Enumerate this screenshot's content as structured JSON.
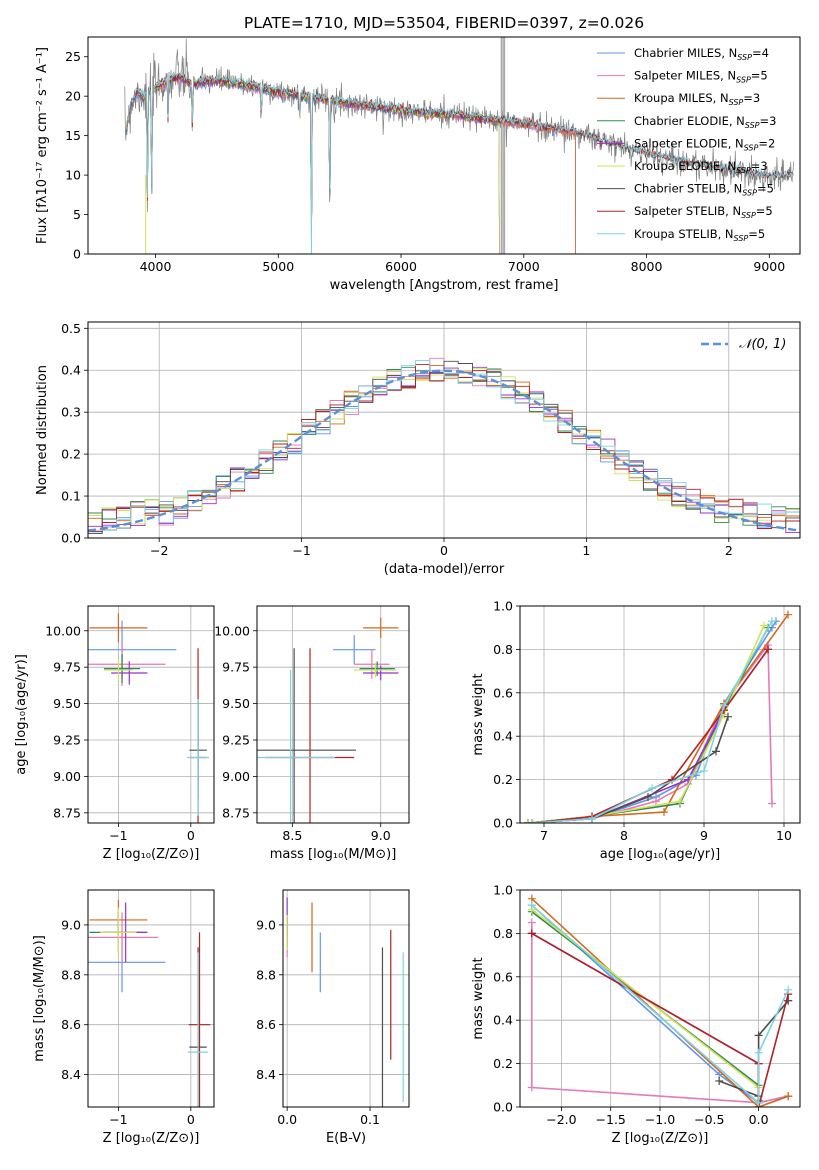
{
  "colors": {
    "Chabrier MILES": "#6495ed",
    "Salpeter MILES": "#e57ab8",
    "Kroupa MILES": "#d2691e",
    "Chabrier ELODIE": "#2e8b57",
    "Salpeter ELODIE": "#9932cc",
    "Kroupa ELODIE": "#d4e157",
    "Chabrier STELIB": "#4d4d4d",
    "Salpeter STELIB": "#b22222",
    "Kroupa STELIB": "#7fd3e0",
    "normal": "#5b8fd6",
    "data": "#808080",
    "mask": "#aaaaaa"
  },
  "chart_data": [
    {
      "id": "spectrum",
      "type": "line",
      "title": "PLATE=1710, MJD=53504, FIBERID=0397, z=0.026",
      "xlabel": "wavelength [Angstrom, rest frame]",
      "ylabel": "Flux [fλ10⁻¹⁷ erg cm⁻² s⁻¹ A⁻¹]",
      "xlim": [
        3450,
        9250
      ],
      "ylim": [
        0,
        27.5
      ],
      "xticks": [
        4000,
        5000,
        6000,
        7000,
        8000,
        9000
      ],
      "yticks": [
        0,
        5,
        10,
        15,
        20,
        25
      ],
      "legend_position": "top-right",
      "legend": [
        {
          "name": "Chabrier MILES",
          "nssp": "4"
        },
        {
          "name": "Salpeter MILES",
          "nssp": "5"
        },
        {
          "name": "Kroupa MILES",
          "nssp": "3"
        },
        {
          "name": "Chabrier ELODIE",
          "nssp": "3"
        },
        {
          "name": "Salpeter ELODIE",
          "nssp": "2"
        },
        {
          "name": "Kroupa ELODIE",
          "nssp": "3"
        },
        {
          "name": "Chabrier STELIB",
          "nssp": "5"
        },
        {
          "name": "Salpeter STELIB",
          "nssp": "5"
        },
        {
          "name": "Kroupa STELIB",
          "nssp": "5"
        }
      ],
      "continuum": [
        [
          3750,
          15
        ],
        [
          3800,
          19
        ],
        [
          3850,
          20.5
        ],
        [
          3900,
          20
        ],
        [
          4000,
          21
        ],
        [
          4100,
          22
        ],
        [
          4200,
          22.5
        ],
        [
          4300,
          21.5
        ],
        [
          4500,
          22
        ],
        [
          4700,
          21.5
        ],
        [
          5000,
          20.5
        ],
        [
          5200,
          20
        ],
        [
          5500,
          19.3
        ],
        [
          6000,
          18.2
        ],
        [
          6500,
          17.5
        ],
        [
          7000,
          16.5
        ],
        [
          7400,
          15.5
        ],
        [
          7800,
          13.5
        ],
        [
          8200,
          12
        ],
        [
          8600,
          10.8
        ],
        [
          9000,
          9.9
        ]
      ],
      "absorption_lines": [
        [
          3934,
          7
        ],
        [
          3969,
          6
        ],
        [
          4102,
          17
        ],
        [
          4300,
          16
        ],
        [
          4861,
          17
        ],
        [
          5175,
          17
        ],
        [
          5270,
          0
        ],
        [
          5420,
          4
        ],
        [
          6563,
          17
        ]
      ],
      "masked_spikes": [
        [
          6820,
          27.5
        ],
        [
          6840,
          27.5
        ]
      ],
      "model_cutoffs": {
        "ELODIE": 6800,
        "MILES": 7420,
        "lowZ": 5270
      }
    },
    {
      "id": "residuals",
      "type": "histogram",
      "xlabel": "(data-model)/error",
      "ylabel": "Normed distribution",
      "xlim": [
        -2.5,
        2.5
      ],
      "ylim": [
        0,
        0.515
      ],
      "xticks": [
        -2,
        -1,
        0,
        1,
        2
      ],
      "yticks": [
        0.0,
        0.1,
        0.2,
        0.3,
        0.4,
        0.5
      ],
      "legend": [
        {
          "name": "𝒩(0, 1)",
          "style": "dashed"
        }
      ],
      "bin_width": 0.1
    },
    {
      "id": "age-Z",
      "type": "errorbar",
      "xlabel": "Z [log₁₀(Z/Z⊙)]",
      "ylabel": "age  [log₁₀(age/yr)]",
      "xlim": [
        -1.42,
        0.32
      ],
      "ylim": [
        8.68,
        10.17
      ],
      "xticks": [
        -1,
        0
      ],
      "yticks": [
        8.75,
        9.0,
        9.25,
        9.5,
        9.75,
        10.0
      ],
      "points": [
        {
          "series": "Chabrier MILES",
          "x": -0.95,
          "xerr": 0.75,
          "y": 9.87,
          "yerr": 0.2
        },
        {
          "series": "Salpeter MILES",
          "x": -0.95,
          "xerr": 0.6,
          "y": 9.77,
          "yerr": 0.15
        },
        {
          "series": "Kroupa MILES",
          "x": -1.0,
          "xerr": 0.4,
          "y": 10.02,
          "yerr": 0.1
        },
        {
          "series": "Chabrier ELODIE",
          "x": -0.95,
          "xerr": 0.25,
          "y": 9.74,
          "yerr": 0.1
        },
        {
          "series": "Salpeter ELODIE",
          "x": -0.85,
          "xerr": 0.25,
          "y": 9.71,
          "yerr": 0.08
        },
        {
          "series": "Kroupa ELODIE",
          "x": -1.0,
          "xerr": 0.2,
          "y": 9.73,
          "yerr": 0.08
        },
        {
          "series": "Chabrier STELIB",
          "x": 0.1,
          "xerr": 0.12,
          "y": 9.18,
          "yerr": 0.33
        },
        {
          "series": "Salpeter STELIB",
          "x": 0.1,
          "xerr": 0.12,
          "y": 9.13,
          "yerr": 0.75
        },
        {
          "series": "Kroupa STELIB",
          "x": 0.1,
          "xerr": 0.15,
          "y": 9.13,
          "yerr": 0.4
        }
      ]
    },
    {
      "id": "age-mass",
      "type": "errorbar",
      "xlabel": "mass [log₁₀(M/M⊙)]",
      "ylabel": "",
      "xlim": [
        8.3,
        9.16
      ],
      "ylim": [
        8.68,
        10.17
      ],
      "xticks": [
        8.5,
        9.0
      ],
      "yticks": [
        8.75,
        9.0,
        9.25,
        9.5,
        9.75,
        10.0
      ],
      "points": [
        {
          "series": "Chabrier MILES",
          "x": 8.85,
          "xerr": 0.12,
          "y": 9.87,
          "yerr": 0.1
        },
        {
          "series": "Salpeter MILES",
          "x": 8.95,
          "xerr": 0.1,
          "y": 9.77,
          "yerr": 0.1
        },
        {
          "series": "Kroupa MILES",
          "x": 9.0,
          "xerr": 0.1,
          "y": 10.02,
          "yerr": 0.07
        },
        {
          "series": "Chabrier ELODIE",
          "x": 8.98,
          "xerr": 0.1,
          "y": 9.74,
          "yerr": 0.05
        },
        {
          "series": "Salpeter ELODIE",
          "x": 9.0,
          "xerr": 0.1,
          "y": 9.71,
          "yerr": 0.05
        },
        {
          "series": "Kroupa ELODIE",
          "x": 8.97,
          "xerr": 0.12,
          "y": 9.73,
          "yerr": 0.05
        },
        {
          "series": "Chabrier STELIB",
          "x": 8.51,
          "xerr": 0.35,
          "y": 9.18,
          "yerr": 0.7
        },
        {
          "series": "Salpeter STELIB",
          "x": 8.6,
          "xerr": 0.25,
          "y": 9.13,
          "yerr": 0.75
        },
        {
          "series": "Kroupa STELIB",
          "x": 8.49,
          "xerr": 0.25,
          "y": 9.13,
          "yerr": 0.6
        }
      ]
    },
    {
      "id": "weight-age",
      "type": "line",
      "xlabel": "age  [log₁₀(age/yr)]",
      "ylabel": "mass weight",
      "xlim": [
        6.7,
        10.2
      ],
      "ylim": [
        0,
        1
      ],
      "xticks": [
        7,
        8,
        9,
        10
      ],
      "yticks": [
        0.0,
        0.2,
        0.4,
        0.6,
        0.8,
        1.0
      ],
      "series": [
        {
          "name": "Chabrier MILES",
          "x": [
            6.8,
            7.6,
            8.4,
            8.9,
            9.25,
            9.85,
            9.9
          ],
          "y": [
            0.0,
            0.02,
            0.12,
            0.22,
            0.55,
            0.9,
            0.93
          ]
        },
        {
          "name": "Salpeter MILES",
          "x": [
            6.8,
            7.6,
            8.4,
            8.8,
            9.25,
            9.8,
            9.85
          ],
          "y": [
            0.0,
            0.02,
            0.1,
            0.18,
            0.55,
            0.82,
            0.09
          ]
        },
        {
          "name": "Kroupa MILES",
          "x": [
            6.8,
            7.6,
            8.5,
            9.25,
            10.05
          ],
          "y": [
            0.0,
            0.03,
            0.05,
            0.55,
            0.96
          ]
        },
        {
          "name": "Chabrier ELODIE",
          "x": [
            6.8,
            7.6,
            8.7,
            9.25,
            9.8
          ],
          "y": [
            0.0,
            0.03,
            0.09,
            0.52,
            0.9
          ]
        },
        {
          "name": "Salpeter ELODIE",
          "x": [
            6.8,
            7.6,
            8.8,
            9.25,
            9.8
          ],
          "y": [
            0.0,
            0.02,
            0.2,
            0.52,
            0.8
          ]
        },
        {
          "name": "Kroupa ELODIE",
          "x": [
            6.8,
            7.6,
            8.7,
            9.25,
            9.75
          ],
          "y": [
            0.0,
            0.03,
            0.1,
            0.5,
            0.91
          ]
        },
        {
          "name": "Chabrier STELIB",
          "x": [
            6.85,
            7.6,
            8.3,
            9.15,
            9.3
          ],
          "y": [
            0.0,
            0.02,
            0.12,
            0.33,
            0.49
          ]
        },
        {
          "name": "Salpeter STELIB",
          "x": [
            6.85,
            7.6,
            8.6,
            9.25,
            9.8
          ],
          "y": [
            0.0,
            0.03,
            0.2,
            0.52,
            0.8
          ]
        },
        {
          "name": "Kroupa STELIB",
          "x": [
            6.85,
            7.6,
            8.35,
            9.0,
            9.25,
            9.85
          ],
          "y": [
            0.0,
            0.02,
            0.16,
            0.24,
            0.54,
            0.93
          ]
        }
      ]
    },
    {
      "id": "mass-Z",
      "type": "errorbar",
      "xlabel": "Z [log₁₀(Z/Z⊙)]",
      "ylabel": "mass [log₁₀(M/M⊙)]",
      "xlim": [
        -1.42,
        0.32
      ],
      "ylim": [
        8.27,
        9.14
      ],
      "xticks": [
        -1,
        0
      ],
      "yticks": [
        8.4,
        8.6,
        8.8,
        9.0
      ],
      "points": [
        {
          "series": "Chabrier MILES",
          "x": -0.95,
          "xerr": 0.6,
          "y": 8.85,
          "yerr": 0.12
        },
        {
          "series": "Salpeter MILES",
          "x": -0.95,
          "xerr": 0.5,
          "y": 8.95,
          "yerr": 0.1
        },
        {
          "series": "Kroupa MILES",
          "x": -1.0,
          "xerr": 0.4,
          "y": 9.02,
          "yerr": 0.08
        },
        {
          "series": "Chabrier ELODIE",
          "x": -1.0,
          "xerr": 0.4,
          "y": 8.97,
          "yerr": 0.08
        },
        {
          "series": "Salpeter ELODIE",
          "x": -0.9,
          "xerr": 0.3,
          "y": 8.97,
          "yerr": 0.12
        },
        {
          "series": "Kroupa ELODIE",
          "x": -1.0,
          "xerr": 0.25,
          "y": 8.97,
          "yerr": 0.1
        },
        {
          "series": "Chabrier STELIB",
          "x": 0.1,
          "xerr": 0.12,
          "y": 8.51,
          "yerr": 0.4
        },
        {
          "series": "Salpeter STELIB",
          "x": 0.12,
          "xerr": 0.15,
          "y": 8.6,
          "yerr": 0.37
        },
        {
          "series": "Kroupa STELIB",
          "x": 0.1,
          "xerr": 0.14,
          "y": 8.49,
          "yerr": 0.4
        }
      ]
    },
    {
      "id": "mass-EBV",
      "type": "errorbar",
      "xlabel": "E(B-V)",
      "ylabel": "",
      "xlim": [
        -0.005,
        0.147
      ],
      "ylim": [
        8.27,
        9.14
      ],
      "xticks": [
        0.0,
        0.1
      ],
      "yticks": [
        8.4,
        8.6,
        8.8,
        9.0
      ],
      "points": [
        {
          "series": "Chabrier MILES",
          "x": 0.04,
          "y": 8.85,
          "yerr": 0.12
        },
        {
          "series": "Salpeter MILES",
          "x": 0.0,
          "y": 8.95,
          "yerr": 0.08
        },
        {
          "series": "Kroupa MILES",
          "x": 0.03,
          "y": 8.95,
          "yerr": 0.14
        },
        {
          "series": "Chabrier ELODIE",
          "x": 0.0,
          "y": 8.97,
          "yerr": 0.06
        },
        {
          "series": "Salpeter ELODIE",
          "x": 0.0,
          "y": 9.03,
          "yerr": 0.08
        },
        {
          "series": "Kroupa ELODIE",
          "x": 0.0,
          "y": 8.97,
          "yerr": 0.07
        },
        {
          "series": "Chabrier STELIB",
          "x": 0.115,
          "y": 8.57,
          "yerr": 0.34
        },
        {
          "series": "Salpeter STELIB",
          "x": 0.125,
          "y": 8.72,
          "yerr": 0.26
        },
        {
          "series": "Kroupa STELIB",
          "x": 0.14,
          "y": 8.59,
          "yerr": 0.3
        }
      ]
    },
    {
      "id": "weight-Z",
      "type": "line",
      "xlabel": "Z [log₁₀(Z/Z⊙)]",
      "ylabel": "mass weight",
      "xlim": [
        -2.42,
        0.42
      ],
      "ylim": [
        0,
        1
      ],
      "xticks": [
        -2.0,
        -1.5,
        -1.0,
        -0.5,
        0.0
      ],
      "yticks": [
        0.0,
        0.2,
        0.4,
        0.6,
        0.8,
        1.0
      ],
      "series": [
        {
          "name": "Chabrier MILES",
          "x": [
            -2.3,
            -0.4,
            0.0,
            0.3
          ],
          "y": [
            0.93,
            0.15,
            0.02,
            0.05
          ]
        },
        {
          "name": "Salpeter MILES",
          "x": [
            -2.3,
            -2.3,
            0.0,
            0.3
          ],
          "y": [
            0.85,
            0.09,
            0.02,
            0.05
          ]
        },
        {
          "name": "Kroupa MILES",
          "x": [
            -2.3,
            0.0,
            0.3
          ],
          "y": [
            0.96,
            0.0,
            0.05
          ]
        },
        {
          "name": "Chabrier ELODIE",
          "x": [
            -2.3,
            0.0,
            0.0
          ],
          "y": [
            0.9,
            0.1,
            0.03
          ]
        },
        {
          "name": "Salpeter ELODIE",
          "x": [
            -2.3,
            -2.3,
            0.0,
            0.0
          ],
          "y": [
            0.8,
            0.8,
            0.2,
            0.02
          ]
        },
        {
          "name": "Kroupa ELODIE",
          "x": [
            -2.3,
            0.0,
            0.0
          ],
          "y": [
            0.91,
            0.09,
            0.0
          ]
        },
        {
          "name": "Chabrier STELIB",
          "x": [
            -0.4,
            0.0,
            0.0,
            0.3,
            0.3
          ],
          "y": [
            0.12,
            0.05,
            0.33,
            0.49,
            0.49
          ]
        },
        {
          "name": "Salpeter STELIB",
          "x": [
            -2.3,
            0.0,
            0.0,
            0.3
          ],
          "y": [
            0.8,
            0.2,
            0.0,
            0.52
          ]
        },
        {
          "name": "Kroupa STELIB",
          "x": [
            -2.3,
            0.0,
            0.0,
            0.3
          ],
          "y": [
            0.93,
            0.02,
            0.25,
            0.54
          ]
        }
      ]
    }
  ]
}
